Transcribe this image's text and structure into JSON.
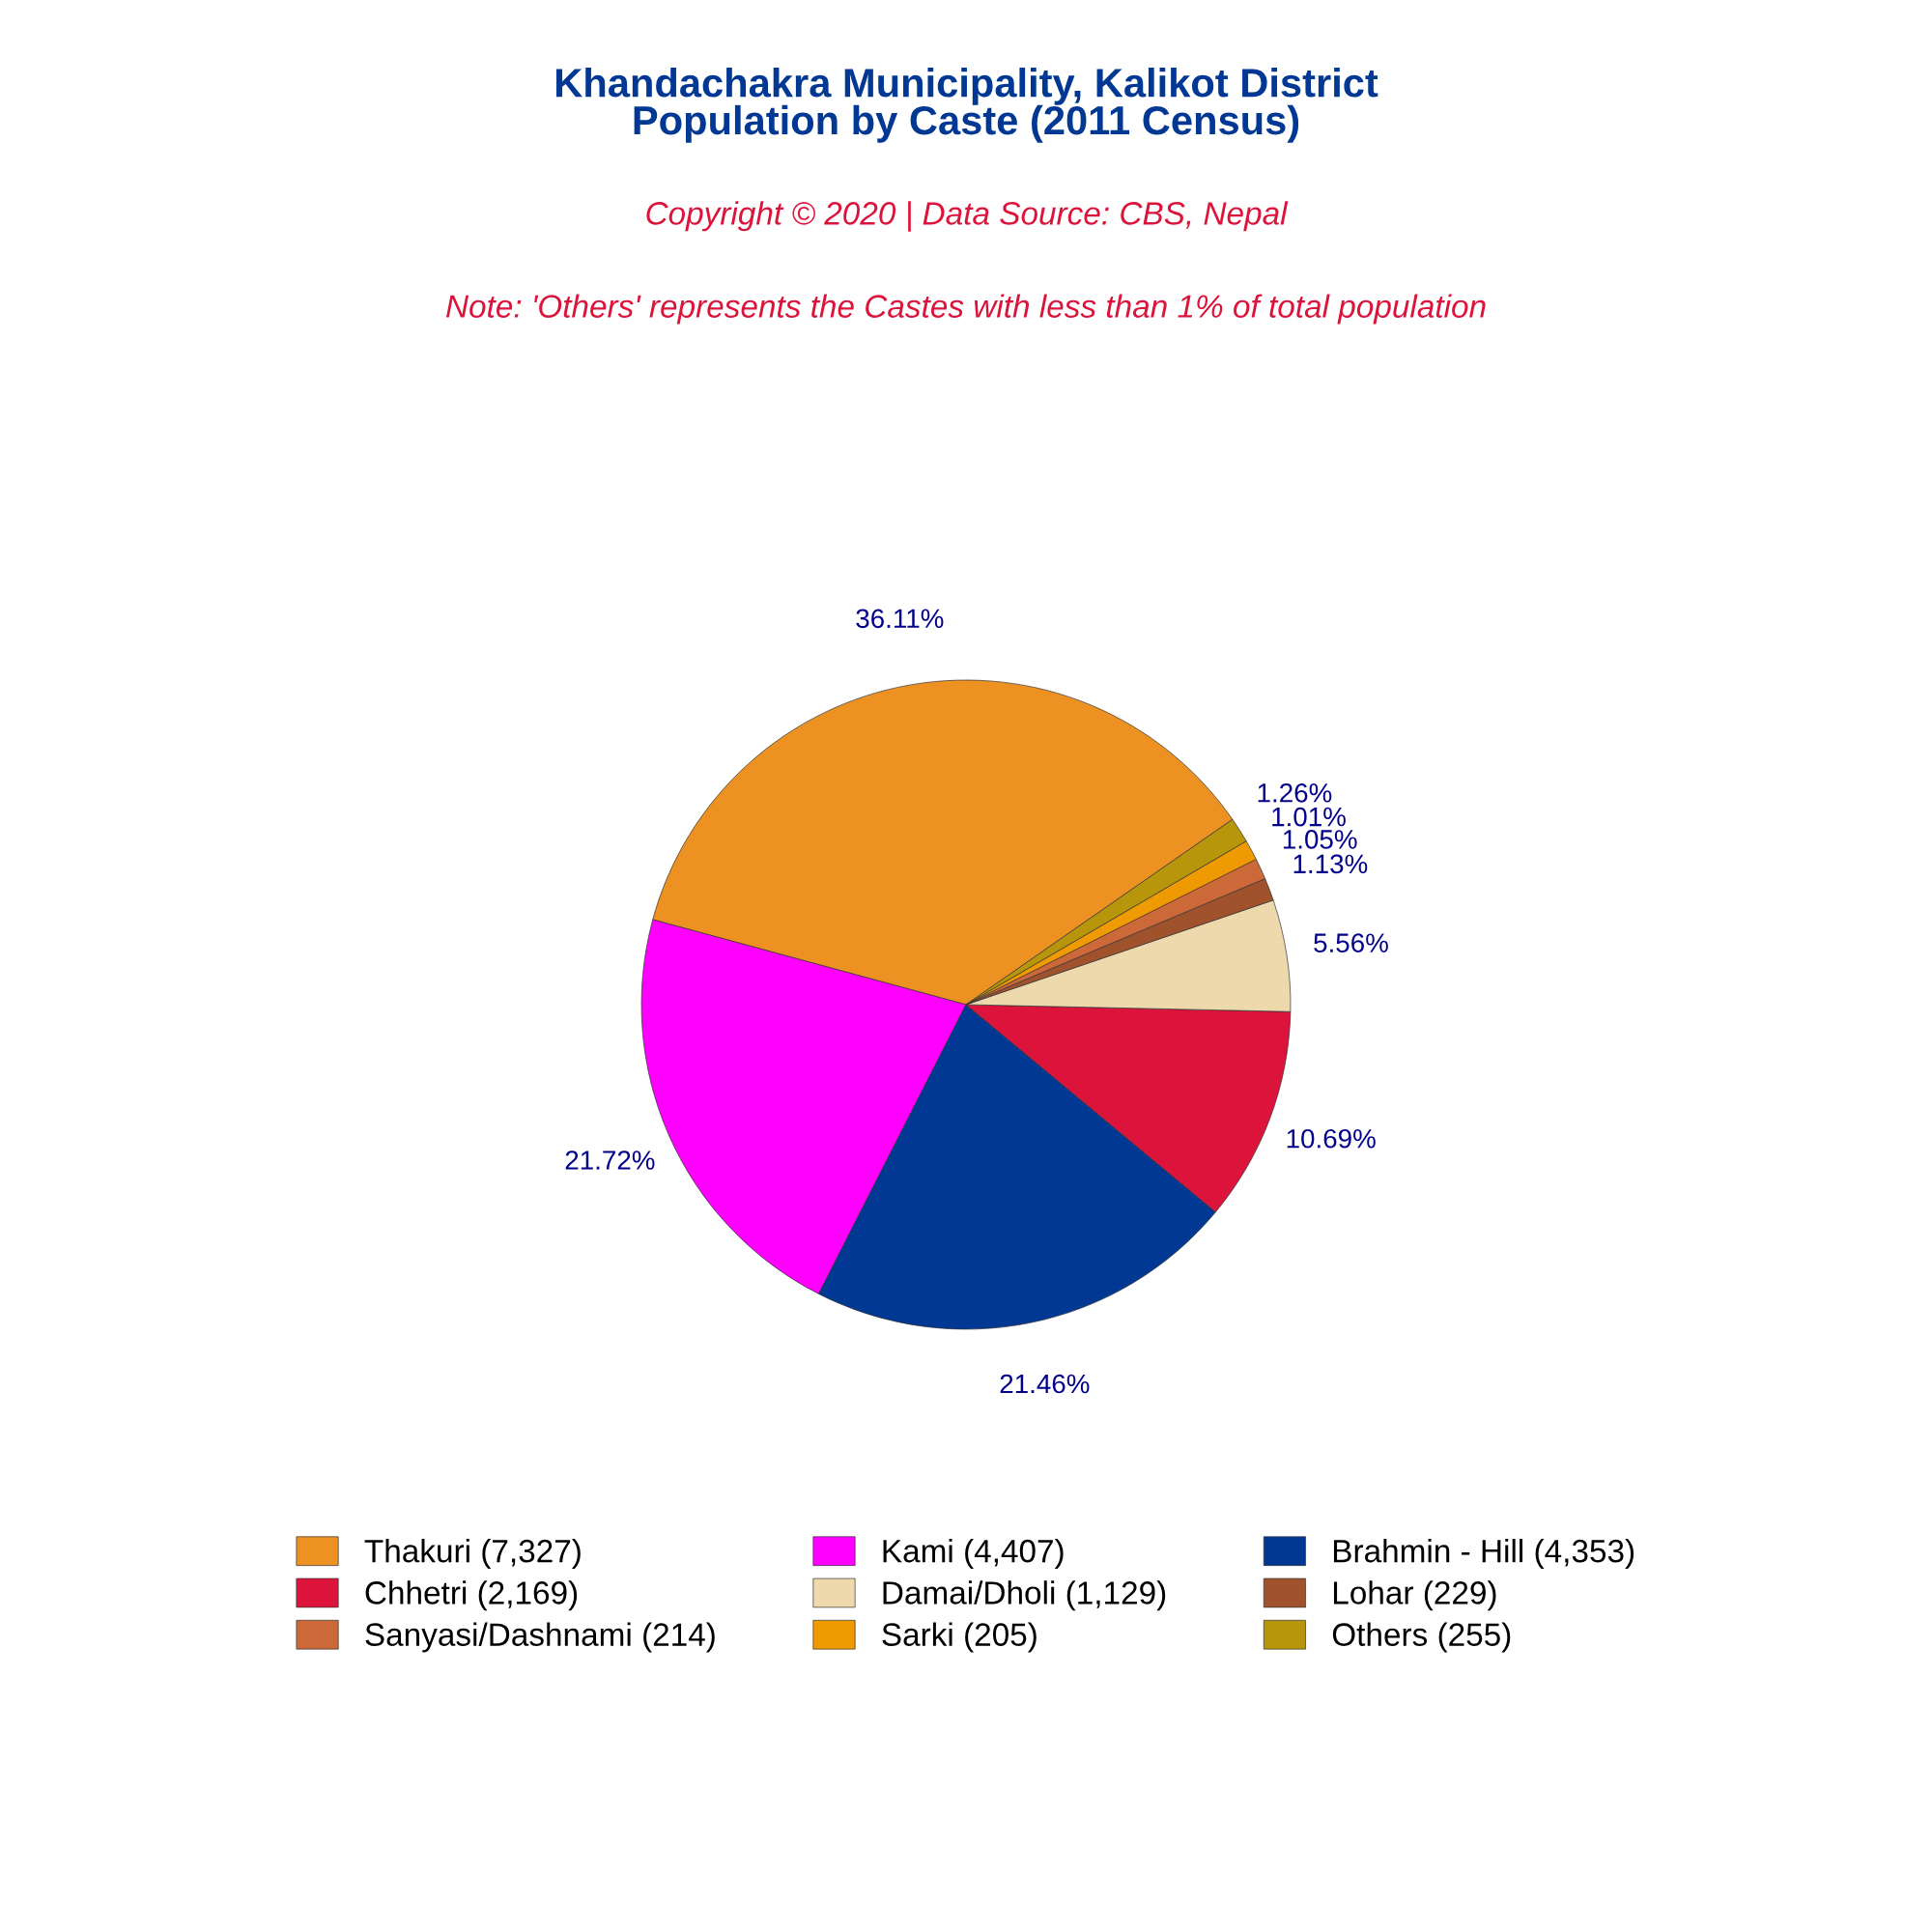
{
  "chart_data": {
    "type": "pie",
    "title": "Khandachakra Municipality, Kalikot District\nPopulation by Caste (2011 Census)",
    "subtitle": "Copyright © 2020 | Data Source: CBS, Nepal",
    "annotations": [
      "Note: 'Others' represents the Castes with less than 1% of total population"
    ],
    "categories": [
      "Thakuri (7,327)",
      "Kami (4,407)",
      "Brahmin - Hill (4,353)",
      "Chhetri (2,169)",
      "Damai/Dholi (1,129)",
      "Lohar (229)",
      "Sanyasi/Dashnami (214)",
      "Sarki (205)",
      "Others (255)"
    ],
    "values": [
      36.11,
      21.72,
      21.46,
      10.69,
      5.56,
      1.13,
      1.05,
      1.01,
      1.26
    ],
    "value_labels": [
      "36.11%",
      "21.72%",
      "21.46%",
      "10.69%",
      "5.56%",
      "1.13%",
      "1.05%",
      "1.01%",
      "1.26%"
    ],
    "colors": [
      "#ec9122",
      "#ff00ff",
      "#003893",
      "#dc143c",
      "#eed9ad",
      "#a0522d",
      "#cd6839",
      "#ee9a00",
      "#b8960c"
    ],
    "legend": "bottom"
  }
}
